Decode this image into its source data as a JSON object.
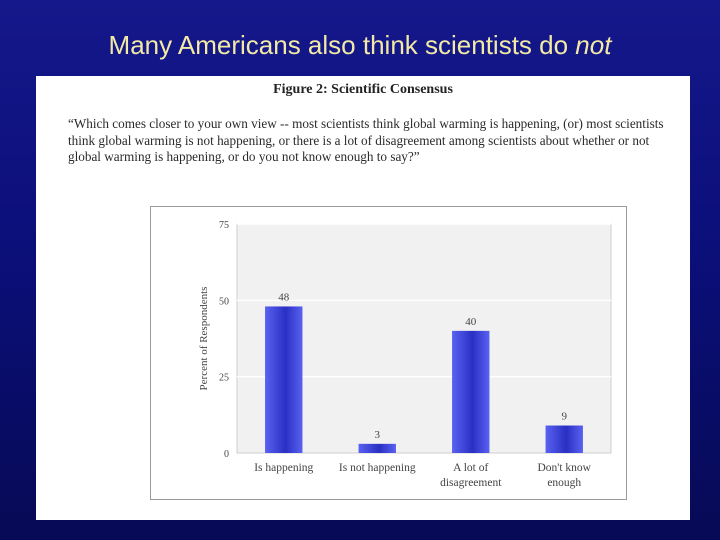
{
  "slide": {
    "title_main": "Many Americans also think scientists do ",
    "title_emphasis": "not"
  },
  "figure": {
    "title": "Figure 2: Scientific Consensus",
    "question": "“Which comes closer to your own view -- most scientists think global warming is happening, (or) most scientists think global warming is not happening, or there is a lot of disagreement among scientists about whether or not global warming is happening, or do you not know enough to say?”"
  },
  "chart_data": {
    "type": "bar",
    "categories": [
      [
        "Is happening"
      ],
      [
        "Is not happening"
      ],
      [
        "A lot of",
        "disagreement"
      ],
      [
        "Don't know",
        "enough"
      ]
    ],
    "values": [
      48,
      3,
      40,
      9
    ],
    "data_labels": [
      "48",
      "3",
      "40",
      "9"
    ],
    "title": "",
    "xlabel": "",
    "ylabel": "Percent of Respondents",
    "ylim": [
      0,
      75
    ],
    "yticks": [
      "0",
      "25",
      "50",
      "75"
    ],
    "grid": true,
    "legend": "none",
    "colors": {
      "bar_light": "#5a62f0",
      "bar_dark": "#2a2fc4",
      "plot_bg": "#f1f1f1",
      "grid": "#ffffff",
      "axis_text": "#444444"
    }
  }
}
